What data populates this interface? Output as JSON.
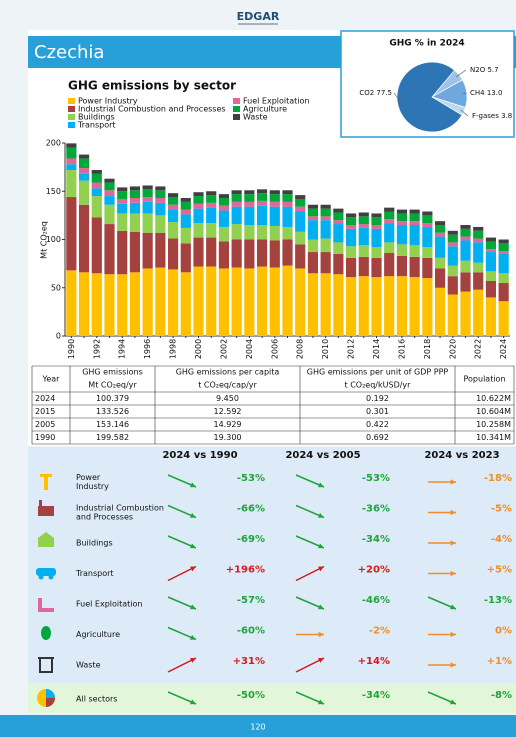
{
  "header": {
    "logo": "EDGAR",
    "title": "Czechia"
  },
  "chart_data": [
    {
      "type": "bar",
      "title": "GHG emissions by sector",
      "y_label": "Mt CO₂eq",
      "stacked": true,
      "grid": false,
      "categories": [
        "1990",
        null,
        "1992",
        null,
        "1994",
        null,
        "1996",
        null,
        "1998",
        null,
        "2000",
        null,
        "2002",
        null,
        "2004",
        null,
        "2006",
        null,
        "2008",
        null,
        "2010",
        null,
        "2012",
        null,
        "2014",
        null,
        "2016",
        null,
        "2018",
        null,
        "2020",
        null,
        "2022",
        null,
        "2024"
      ],
      "ylim": [
        0,
        200
      ],
      "yticks": [
        0,
        50,
        100,
        150,
        200
      ],
      "series": [
        {
          "name": "Power Industry",
          "color": "#FFC000",
          "values": [
            68,
            66,
            65,
            64,
            64,
            66,
            70,
            71,
            69,
            66,
            72,
            72,
            70,
            71,
            70,
            72,
            71,
            73,
            70,
            65,
            65,
            64,
            61,
            62,
            61,
            62,
            62,
            61,
            60,
            50,
            43,
            46,
            48,
            40,
            36
          ]
        },
        {
          "name": "Industrial Combustion and Processes",
          "color": "#A5413F",
          "values": [
            76,
            70,
            58,
            52,
            45,
            42,
            37,
            36,
            32,
            30,
            30,
            30,
            28,
            29,
            30,
            28,
            28,
            27,
            25,
            22,
            22,
            21,
            20,
            20,
            20,
            24,
            21,
            21,
            21,
            20,
            19,
            20,
            18,
            17,
            19
          ]
        },
        {
          "name": "Buildings",
          "color": "#92D050",
          "values": [
            28,
            25,
            22,
            20,
            18,
            19,
            20,
            18,
            17,
            16,
            15,
            15,
            15,
            16,
            15,
            15,
            15,
            13,
            13,
            13,
            14,
            12,
            12,
            12,
            11,
            11,
            12,
            12,
            11,
            11,
            11,
            12,
            10,
            10,
            10
          ]
        },
        {
          "name": "Transport",
          "color": "#00B0F0",
          "values": [
            6,
            7,
            8,
            9,
            10,
            11,
            12,
            13,
            13,
            14,
            15,
            16,
            17,
            18,
            19,
            20,
            20,
            21,
            21,
            20,
            19,
            19,
            18,
            18,
            19,
            20,
            20,
            21,
            21,
            22,
            20,
            21,
            21,
            20,
            20
          ]
        },
        {
          "name": "Fuel Exploitation",
          "color": "#E0679A",
          "values": [
            6,
            6,
            6,
            6,
            5,
            5,
            5,
            5,
            5,
            5,
            5,
            5,
            5,
            5,
            5,
            5,
            5,
            5,
            5,
            4,
            4,
            4,
            4,
            4,
            4,
            4,
            4,
            4,
            4,
            4,
            4,
            4,
            4,
            3,
            3
          ]
        },
        {
          "name": "Agriculture",
          "color": "#00A83A",
          "values": [
            11,
            10,
            9,
            8,
            8,
            8,
            8,
            8,
            8,
            8,
            8,
            8,
            8,
            8,
            8,
            8,
            8,
            8,
            8,
            8,
            8,
            8,
            8,
            8,
            8,
            8,
            8,
            8,
            8,
            8,
            8,
            8,
            8,
            8,
            8
          ]
        },
        {
          "name": "Waste",
          "color": "#404040",
          "values": [
            4.6,
            4,
            4,
            4,
            4,
            4,
            4,
            4,
            4,
            4,
            4,
            4,
            4,
            4,
            4,
            4,
            4,
            4,
            4,
            4,
            4,
            4,
            4,
            4,
            4,
            4,
            4,
            4,
            4,
            4,
            4,
            4,
            4,
            4,
            4
          ]
        }
      ]
    },
    {
      "type": "pie",
      "title": "GHG % in 2024",
      "categories": [
        "N2O",
        "CH4",
        "F-gases",
        "CO2"
      ],
      "values": [
        5.7,
        13.0,
        3.8,
        77.5
      ],
      "value_labels": [
        "5.7",
        "13.0",
        "3.8",
        "77.5"
      ],
      "colors": [
        "#9DC3E6",
        "#6FA8DC",
        "#BDD7EE",
        "#2E75B6"
      ]
    }
  ],
  "table": {
    "header": [
      [
        "Year"
      ],
      [
        "GHG emissions",
        "Mt CO₂eq/yr"
      ],
      [
        "GHG emissions per capita",
        "t CO₂eq/cap/yr"
      ],
      [
        "GHG emissions per unit of GDP PPP",
        "t CO₂eq/kUSD/yr"
      ],
      [
        "Population"
      ]
    ],
    "rows": [
      [
        "2024",
        "100.379",
        "9.450",
        "0.192",
        "10.622M"
      ],
      [
        "2015",
        "133.526",
        "12.592",
        "0.301",
        "10.604M"
      ],
      [
        "2005",
        "153.146",
        "14.929",
        "0.422",
        "10.258M"
      ],
      [
        "1990",
        "199.582",
        "19.300",
        "0.692",
        "10.341M"
      ]
    ]
  },
  "changes": {
    "columns": [
      "2024 vs 1990",
      "2024 vs 2005",
      "2024 vs 2023"
    ],
    "rows": [
      {
        "name": [
          "Power",
          "Industry"
        ],
        "values": [
          "-53%",
          "-53%",
          "-18%"
        ],
        "arrows": [
          "down",
          "down",
          "flat"
        ]
      },
      {
        "name": [
          "Industrial Combustion",
          " and Processes"
        ],
        "values": [
          "-66%",
          "-36%",
          "-5%"
        ],
        "arrows": [
          "down",
          "down",
          "flat"
        ]
      },
      {
        "name": [
          "Buildings"
        ],
        "values": [
          "-69%",
          "-34%",
          "-4%"
        ],
        "arrows": [
          "down",
          "down",
          "flat"
        ]
      },
      {
        "name": [
          "Transport"
        ],
        "values": [
          "+196%",
          "+20%",
          "+5%"
        ],
        "arrows": [
          "up",
          "up",
          "flat"
        ]
      },
      {
        "name": [
          "Fuel Exploitation"
        ],
        "values": [
          "-57%",
          "-46%",
          "-13%"
        ],
        "arrows": [
          "down",
          "down",
          "down"
        ]
      },
      {
        "name": [
          "Agriculture"
        ],
        "values": [
          "-60%",
          "-2%",
          "0%"
        ],
        "arrows": [
          "down",
          "flat",
          "flat"
        ]
      },
      {
        "name": [
          "Waste"
        ],
        "values": [
          "+31%",
          "+14%",
          "+1%"
        ],
        "arrows": [
          "up",
          "up",
          "flat"
        ]
      },
      {
        "name": [
          "All sectors"
        ],
        "values": [
          "-50%",
          "-34%",
          "-8%"
        ],
        "arrows": [
          "down",
          "down",
          "down"
        ]
      }
    ]
  },
  "footer": {
    "page": "120"
  }
}
